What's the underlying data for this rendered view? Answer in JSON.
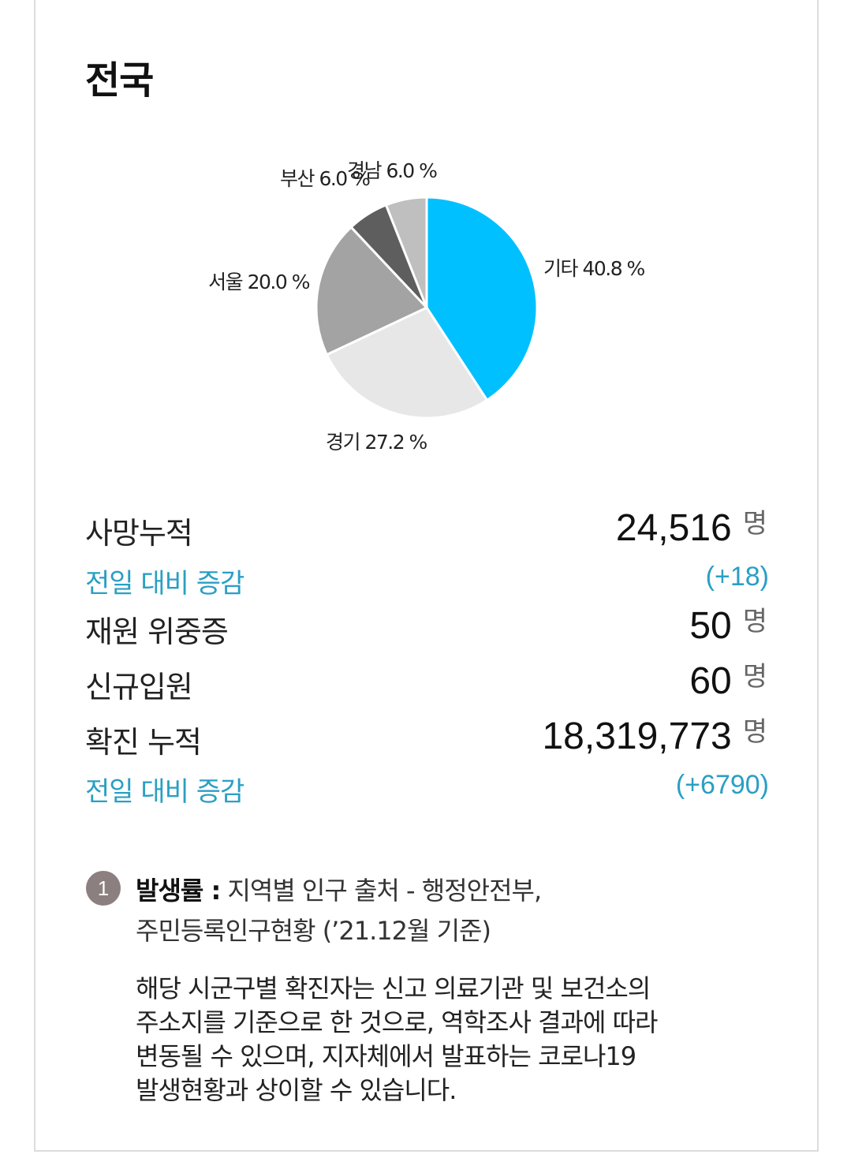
{
  "title": "전국",
  "chart_data": {
    "type": "pie",
    "slices": [
      {
        "label": "기타",
        "value": 40.8,
        "text": "기타 40.8 %",
        "color": "#00c0ff"
      },
      {
        "label": "경기",
        "value": 27.2,
        "text": "경기 27.2 %",
        "color": "#e7e7e7"
      },
      {
        "label": "서울",
        "value": 20.0,
        "text": "서울 20.0 %",
        "color": "#a3a3a3"
      },
      {
        "label": "부산",
        "value": 6.0,
        "text": "부산 6.0 %",
        "color": "#5e5e5e"
      },
      {
        "label": "경남",
        "value": 6.0,
        "text": "경남 6.0 %",
        "color": "#bfbfbf"
      }
    ]
  },
  "stats": {
    "deaths": {
      "label": "사망누적",
      "value": "24,516",
      "unit": "명"
    },
    "deaths_diff": {
      "label": "전일 대비 증감",
      "value": "(+18)"
    },
    "critical": {
      "label": "재원 위중증",
      "value": "50",
      "unit": "명"
    },
    "new_admit": {
      "label": "신규입원",
      "value": "60",
      "unit": "명"
    },
    "confirmed": {
      "label": "확진 누적",
      "value": "18,319,773",
      "unit": "명"
    },
    "confirmed_diff": {
      "label": "전일 대비 증감",
      "value": "(+6790)"
    }
  },
  "note": {
    "badge": "1",
    "bold": "발생률 :",
    "line1_rest": " 지역별 인구 출처 - 행정안전부,",
    "line2": "주민등록인구현황 (’21.12월 기준)",
    "para": [
      "해당 시군구별 확진자는 신고 의료기관 및 보건소의",
      "주소지를 기준으로 한 것으로, 역학조사 결과에 따라",
      "변동될 수 있으며, 지자체에서 발표하는 코로나19",
      "발생현황과 상이할 수 있습니다."
    ]
  }
}
